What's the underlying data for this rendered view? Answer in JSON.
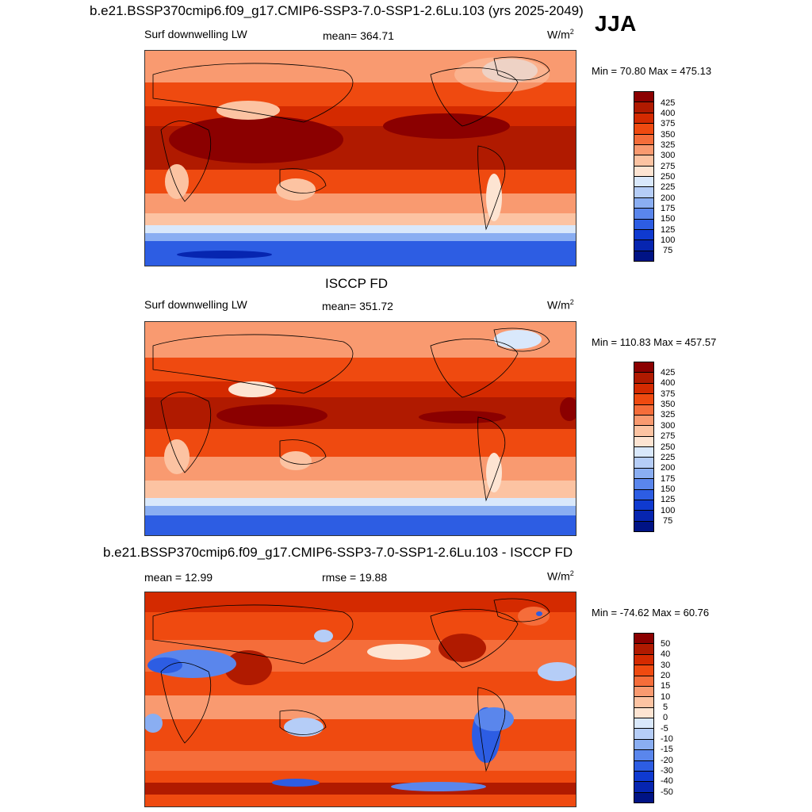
{
  "season": "JJA",
  "panels": [
    {
      "title": "b.e21.BSSP370cmip6.f09_g17.CMIP6-SSP3-7.0-SSP1-2.6Lu.103 (yrs 2025-2049)",
      "left_label": "Surf downwelling LW",
      "center_label": "mean= 364.71",
      "units": "W/m",
      "units_sup": "2",
      "minmax": "Min =  70.80 Max = 475.13"
    },
    {
      "title": "ISCCP FD",
      "left_label": "Surf downwelling LW",
      "center_label": "mean= 351.72",
      "units": "W/m",
      "units_sup": "2",
      "minmax": "Min = 110.83 Max = 457.57"
    },
    {
      "title": "b.e21.BSSP370cmip6.f09_g17.CMIP6-SSP3-7.0-SSP1-2.6Lu.103 - ISCCP FD",
      "left_label": "mean =  12.99",
      "center_label": "rmse =  19.88",
      "units": "W/m",
      "units_sup": "2",
      "minmax": "Min = -74.62 Max =  60.76"
    }
  ],
  "colorbar_abs": {
    "levels": [
      "425",
      "400",
      "375",
      "350",
      "325",
      "300",
      "275",
      "250",
      "225",
      "200",
      "175",
      "150",
      "125",
      "100",
      "75"
    ],
    "colors": [
      "#8b0000",
      "#b01a00",
      "#d42a00",
      "#ef4a10",
      "#f56d3a",
      "#f99a70",
      "#fcc3a2",
      "#fde4d2",
      "#d9e8fb",
      "#b5cdf7",
      "#8aaef2",
      "#5a86ec",
      "#2d5de3",
      "#0f3ad0",
      "#0625b0",
      "#001385"
    ]
  },
  "colorbar_diff": {
    "levels": [
      "50",
      "40",
      "30",
      "20",
      "15",
      "10",
      "5",
      "0",
      "-5",
      "-10",
      "-15",
      "-20",
      "-30",
      "-40",
      "-50"
    ],
    "colors": [
      "#8b0000",
      "#b01a00",
      "#d42a00",
      "#ef4a10",
      "#f56d3a",
      "#f99a70",
      "#fcc3a2",
      "#fde4d2",
      "#d9e8fb",
      "#b5cdf7",
      "#8aaef2",
      "#5a86ec",
      "#2d5de3",
      "#0f3ad0",
      "#0625b0",
      "#001385"
    ]
  },
  "chart_data": {
    "type": "heatmap",
    "variable": "Surf downwelling LW",
    "season": "JJA",
    "maps": [
      {
        "title": "b.e21.BSSP370cmip6.f09_g17.CMIP6-SSP3-7.0-SSP1-2.6Lu.103 (yrs 2025-2049)",
        "mean": 364.71,
        "min": 70.8,
        "max": 475.13,
        "units": "W/m2"
      },
      {
        "title": "ISCCP FD",
        "mean": 351.72,
        "min": 110.83,
        "max": 457.57,
        "units": "W/m2"
      },
      {
        "title": "b.e21.BSSP370cmip6.f09_g17.CMIP6-SSP3-7.0-SSP1-2.6Lu.103 - ISCCP FD",
        "mean": 12.99,
        "rmse": 19.88,
        "min": -74.62,
        "max": 60.76,
        "units": "W/m2"
      }
    ],
    "contour_levels_abs": [
      75,
      100,
      125,
      150,
      175,
      200,
      225,
      250,
      275,
      300,
      325,
      350,
      375,
      400,
      425
    ],
    "contour_levels_diff": [
      -50,
      -40,
      -30,
      -20,
      -15,
      -10,
      -5,
      0,
      5,
      10,
      15,
      20,
      30,
      40,
      50
    ]
  }
}
